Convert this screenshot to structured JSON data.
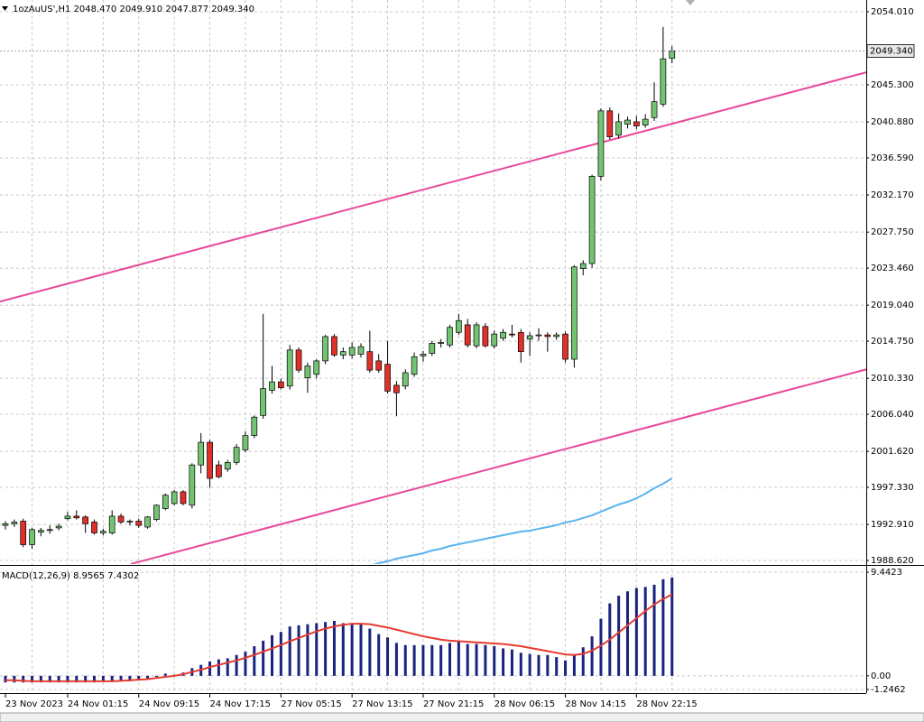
{
  "chart_data": [
    {
      "type": "candlestick",
      "title": "1ozAuUS',H1  2048.470 2049.910 2047.877 2049.340",
      "categories": [
        "23 Nov 2023",
        null,
        null,
        null,
        null,
        null,
        null,
        "24 Nov 01:15",
        null,
        null,
        null,
        null,
        null,
        null,
        null,
        "24 Nov 09:15",
        null,
        null,
        null,
        null,
        null,
        null,
        null,
        "24 Nov 17:15",
        null,
        null,
        null,
        null,
        null,
        null,
        null,
        "27 Nov 05:15",
        null,
        null,
        null,
        null,
        null,
        null,
        null,
        "27 Nov 13:15",
        null,
        null,
        null,
        null,
        null,
        null,
        null,
        "27 Nov 21:15",
        null,
        null,
        null,
        null,
        null,
        null,
        null,
        "28 Nov 06:15",
        null,
        null,
        null,
        null,
        null,
        null,
        null,
        "28 Nov 14:15",
        null,
        null,
        null,
        null,
        null,
        null,
        null,
        "28 Nov 22:15",
        null,
        null,
        null,
        null
      ],
      "open": [
        1992.8,
        1993.0,
        1993.3,
        1990.5,
        1992.0,
        1992.2,
        1992.5,
        1993.6,
        1993.9,
        1993.8,
        1993.2,
        1991.9,
        1991.9,
        1993.9,
        1993.2,
        1993.3,
        1992.6,
        1993.5,
        1994.8,
        1995.4,
        1996.8,
        1995.2,
        2000.0,
        2002.7,
        2000.0,
        1999.5,
        2000.3,
        2001.8,
        2003.5,
        2005.9,
        2008.9,
        2009.9,
        2009.4,
        2013.7,
        2010.4,
        2010.8,
        2012.4,
        2015.3,
        2013.1,
        2013.1,
        2013.2,
        2013.5,
        2012.4,
        2012.0,
        2009.5,
        2009.4,
        2010.8,
        2013.0,
        2013.3,
        2014.5,
        2014.3,
        2015.8,
        2016.7,
        2014.2,
        2016.5,
        2014.2,
        2015.1,
        2015.6,
        2015.8,
        2015.0,
        2015.4,
        2015.5,
        2015.3,
        2015.6,
        2012.6,
        2023.4,
        2024.0,
        2034.4,
        2042.2,
        2039.3,
        2040.6,
        2040.9,
        2040.5,
        2041.4,
        2043.0,
        2048.47
      ],
      "high": [
        1993.3,
        1993.5,
        1993.6,
        1992.5,
        1992.5,
        1992.8,
        1993.0,
        1994.4,
        1994.6,
        1994.0,
        1993.5,
        1992.4,
        1994.6,
        1994.2,
        1993.5,
        1993.6,
        1993.9,
        1995.3,
        1996.6,
        1997.0,
        1997.0,
        2000.2,
        2003.8,
        2003.0,
        2000.5,
        2000.6,
        2002.5,
        2004.0,
        2005.9,
        2018.0,
        2011.8,
        2010.3,
        2014.3,
        2014.0,
        2012.2,
        2012.6,
        2015.5,
        2015.6,
        2014.0,
        2014.6,
        2014.5,
        2016.0,
        2013.2,
        2014.8,
        2010.0,
        2011.4,
        2013.4,
        2013.6,
        2014.8,
        2015.0,
        2016.7,
        2018.0,
        2017.4,
        2017.0,
        2016.9,
        2016.0,
        2016.2,
        2016.7,
        2016.2,
        2015.8,
        2016.3,
        2015.8,
        2015.8,
        2015.9,
        2023.8,
        2024.4,
        2034.6,
        2042.5,
        2042.6,
        2041.9,
        2041.5,
        2041.6,
        2041.8,
        2045.6,
        2052.2,
        2049.91
      ],
      "low": [
        1992.3,
        1992.6,
        1990.2,
        1990.0,
        1991.5,
        1991.8,
        1992.2,
        1993.4,
        1993.5,
        1991.9,
        1991.7,
        1991.6,
        1991.7,
        1993.0,
        1992.8,
        1992.5,
        1992.4,
        1993.3,
        1994.6,
        1995.2,
        1995.2,
        1994.8,
        1999.0,
        1997.3,
        1998.4,
        1999.2,
        2000.0,
        2001.5,
        2003.2,
        2005.5,
        2008.5,
        2009.0,
        2009.0,
        2011.0,
        2008.6,
        2010.3,
        2012.0,
        2012.9,
        2012.6,
        2012.7,
        2012.8,
        2011.0,
        2011.0,
        2008.5,
        2005.8,
        2009.0,
        2010.5,
        2012.3,
        2013.0,
        2014.0,
        2014.0,
        2015.5,
        2014.0,
        2013.9,
        2014.0,
        2013.9,
        2014.8,
        2015.2,
        2012.2,
        2013.0,
        2014.8,
        2013.5,
        2014.9,
        2012.2,
        2011.6,
        2022.6,
        2023.5,
        2033.9,
        2038.8,
        2038.9,
        2040.1,
        2040.0,
        2040.2,
        2041.0,
        2042.7,
        2047.877
      ],
      "close": [
        1993.0,
        1993.2,
        1990.5,
        1992.3,
        1992.2,
        1992.3,
        1992.7,
        1993.9,
        1993.7,
        1993.0,
        1991.9,
        1992.1,
        1993.9,
        1993.2,
        1993.3,
        1992.8,
        1993.8,
        1995.2,
        1996.4,
        1996.8,
        1995.4,
        2000.0,
        2002.7,
        1998.4,
        1998.6,
        2000.3,
        2002.1,
        2003.5,
        2005.7,
        2009.1,
        2009.9,
        2009.2,
        2013.7,
        2011.3,
        2011.8,
        2012.4,
        2015.3,
        2013.1,
        2013.5,
        2014.0,
        2014.1,
        2011.3,
        2011.3,
        2008.8,
        2008.6,
        2011.0,
        2012.9,
        2013.2,
        2014.5,
        2014.6,
        2016.4,
        2017.2,
        2014.3,
        2016.7,
        2014.2,
        2015.6,
        2015.8,
        2015.5,
        2013.5,
        2015.4,
        2015.5,
        2015.3,
        2015.5,
        2012.6,
        2023.6,
        2024.0,
        2034.4,
        2042.2,
        2039.1,
        2040.9,
        2041.1,
        2040.4,
        2041.2,
        2043.3,
        2048.4,
        2049.34
      ],
      "up_color": "#72c472",
      "down_color": "#e0302a",
      "series": [
        {
          "color": "#5ab4ef",
          "values": [
            null,
            null,
            null,
            null,
            null,
            null,
            null,
            null,
            null,
            null,
            null,
            null,
            null,
            null,
            null,
            null,
            null,
            null,
            null,
            null,
            null,
            null,
            null,
            null,
            null,
            null,
            null,
            null,
            null,
            null,
            null,
            null,
            null,
            null,
            null,
            null,
            null,
            null,
            null,
            null,
            null,
            1987.98,
            1988.3,
            1988.51,
            1988.84,
            1989.05,
            1989.27,
            1989.48,
            1989.8,
            1990.02,
            1990.34,
            1990.56,
            1990.77,
            1990.99,
            1991.2,
            1991.42,
            1991.63,
            1991.85,
            1992.06,
            1992.17,
            1992.39,
            1992.6,
            1992.82,
            1993.14,
            1993.36,
            1993.68,
            1994.0,
            1994.43,
            1994.86,
            1995.29,
            1995.61,
            1996.04,
            1996.58,
            1997.22,
            1997.76,
            1998.41
          ]
        }
      ],
      "trendlines": [
        {
          "color": "#e8489a",
          "x": [
            -0.61,
            96.9
          ],
          "values": [
            2019.47,
            2046.8
          ]
        },
        {
          "color": "#e8489a",
          "x": [
            14.1,
            96.9
          ],
          "values": [
            1988.2,
            2011.4
          ]
        }
      ],
      "last_price": {
        "value": 2049.34,
        "label": "2049.340"
      },
      "ylim": [
        1988.19,
        2055.41
      ],
      "yticks": [
        {
          "value": 2054.01,
          "label": "2054.010"
        },
        {
          "value": 2045.3,
          "label": "2045.300"
        },
        {
          "value": 2040.88,
          "label": "2040.880"
        },
        {
          "value": 2036.59,
          "label": "2036.590"
        },
        {
          "value": 2032.17,
          "label": "2032.170"
        },
        {
          "value": 2027.75,
          "label": "2027.750"
        },
        {
          "value": 2023.46,
          "label": "2023.460"
        },
        {
          "value": 2019.04,
          "label": "2019.040"
        },
        {
          "value": 2014.75,
          "label": "2014.750"
        },
        {
          "value": 2010.33,
          "label": "2010.330"
        },
        {
          "value": 2006.04,
          "label": "2006.040"
        },
        {
          "value": 2001.62,
          "label": "2001.620"
        },
        {
          "value": 1997.33,
          "label": "1997.330"
        },
        {
          "value": 1992.91,
          "label": "1992.910"
        },
        {
          "value": 1988.62,
          "label": "1988.620"
        }
      ],
      "grid": true
    },
    {
      "type": "macd",
      "title": "MACD(12,26,9) 8.9565 7.4302",
      "series": [
        {
          "type": "bar",
          "color": "#1a237e",
          "values": [
            -0.6,
            -0.6,
            -0.6,
            -0.6,
            -0.6,
            -0.6,
            -0.6,
            -0.6,
            -0.6,
            -0.6,
            -0.6,
            -0.5,
            -0.5,
            -0.5,
            -0.5,
            -0.4,
            -0.3,
            -0.1,
            0.2,
            0.1,
            0.3,
            0.7,
            1.0,
            1.3,
            1.5,
            1.6,
            1.9,
            2.2,
            2.7,
            3.2,
            3.7,
            4.0,
            4.5,
            4.6,
            4.7,
            4.8,
            4.9,
            5.0,
            4.8,
            4.7,
            4.7,
            4.3,
            3.8,
            3.5,
            3.0,
            2.8,
            2.8,
            2.8,
            2.8,
            2.8,
            3.0,
            3.1,
            2.9,
            2.9,
            2.8,
            2.7,
            2.5,
            2.4,
            2.1,
            2.0,
            1.9,
            1.9,
            1.7,
            1.4,
            1.9,
            2.6,
            3.6,
            5.2,
            6.6,
            7.3,
            7.7,
            8.0,
            8.1,
            8.3,
            8.8,
            8.9565
          ]
        },
        {
          "type": "line",
          "color": "#e53b2f",
          "values": [
            -0.4,
            -0.4,
            -0.45,
            -0.5,
            -0.5,
            -0.5,
            -0.5,
            -0.5,
            -0.5,
            -0.5,
            -0.5,
            -0.5,
            -0.5,
            -0.45,
            -0.4,
            -0.35,
            -0.3,
            -0.2,
            -0.1,
            0.0,
            0.15,
            0.35,
            0.55,
            0.8,
            1.0,
            1.2,
            1.4,
            1.65,
            1.9,
            2.2,
            2.5,
            2.8,
            3.15,
            3.45,
            3.75,
            4.05,
            4.3,
            4.5,
            4.65,
            4.75,
            4.75,
            4.7,
            4.55,
            4.4,
            4.2,
            4.0,
            3.8,
            3.6,
            3.45,
            3.3,
            3.2,
            3.15,
            3.1,
            3.05,
            3.0,
            2.95,
            2.9,
            2.8,
            2.7,
            2.55,
            2.4,
            2.25,
            2.1,
            1.95,
            1.9,
            2.0,
            2.3,
            2.75,
            3.3,
            3.95,
            4.6,
            5.25,
            5.9,
            6.5,
            7.0,
            7.4302
          ]
        }
      ],
      "ylim": [
        -1.2462,
        9.4423
      ],
      "yticks": [
        9.4423,
        {
          "value": 0,
          "label": "0.00"
        },
        -1.2462
      ],
      "grid": true
    }
  ]
}
